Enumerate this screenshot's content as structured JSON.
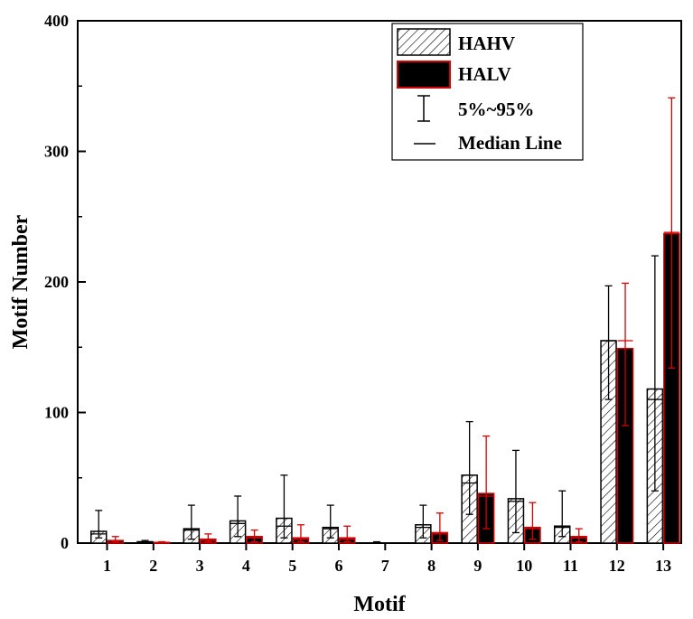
{
  "chart_data": {
    "type": "bar",
    "xlabel": "Motif",
    "ylabel": "Motif Number",
    "categories": [
      "1",
      "2",
      "3",
      "4",
      "5",
      "6",
      "7",
      "8",
      "9",
      "10",
      "11",
      "12",
      "13"
    ],
    "ylim": [
      0,
      400
    ],
    "yticks": [
      0,
      100,
      200,
      300,
      400
    ],
    "series": [
      {
        "name": "HAHV",
        "color": "#000000",
        "fill": "hatch",
        "values": [
          9,
          1,
          11,
          17,
          19,
          12,
          0,
          14,
          52,
          34,
          13,
          155,
          118
        ],
        "median": [
          7,
          1,
          10,
          15,
          13,
          11,
          0,
          12,
          46,
          32,
          12,
          155,
          110
        ],
        "p5": [
          4,
          0,
          3,
          5,
          4,
          4,
          0,
          4,
          22,
          8,
          5,
          110,
          40
        ],
        "p95": [
          25,
          2,
          29,
          36,
          52,
          29,
          1,
          29,
          93,
          71,
          40,
          197,
          220
        ]
      },
      {
        "name": "HALV",
        "color": "#000000",
        "edge": "#d40000",
        "fill": "solid",
        "values": [
          2,
          0.5,
          3,
          5,
          4,
          4,
          0,
          8,
          38,
          12,
          5,
          149,
          237
        ],
        "median": [
          2,
          0.5,
          2,
          4,
          3,
          3,
          0,
          7,
          36,
          11,
          4,
          155,
          238
        ],
        "p5": [
          1,
          0,
          1,
          1,
          1,
          1,
          0,
          2,
          11,
          3,
          1,
          90,
          134
        ],
        "p95": [
          5,
          1,
          7,
          10,
          14,
          13,
          0,
          23,
          82,
          31,
          11,
          199,
          341
        ]
      }
    ],
    "legend": {
      "placement": "top-right",
      "entries": [
        "HAHV",
        "HALV",
        "5%~95%",
        "Median Line"
      ]
    }
  }
}
